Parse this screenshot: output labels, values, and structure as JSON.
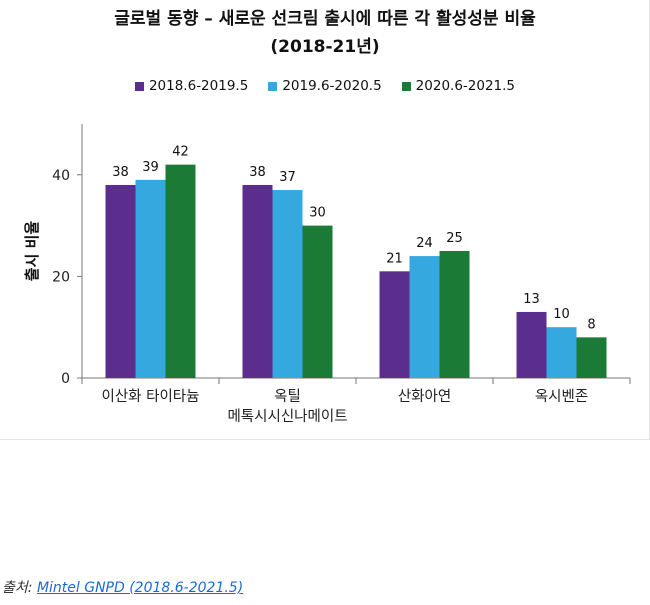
{
  "chart_data": {
    "type": "bar",
    "title": "글로벌 동향 – 새로운 선크림 출시에 따른 각 활성성분 비율",
    "subtitle": "(2018-21년)",
    "ylabel": "출시 비율",
    "xlabel": "",
    "ylim": [
      0,
      50
    ],
    "yticks": [
      0,
      20,
      40
    ],
    "categories": [
      [
        "이산화 타이타늄"
      ],
      [
        "옥틸",
        "메톡시시신나메이트"
      ],
      [
        "산화아연"
      ],
      [
        "옥시벤존"
      ]
    ],
    "series": [
      {
        "name": "2018.6-2019.5",
        "color": "#5b2d8c",
        "values": [
          38,
          38,
          21,
          13
        ]
      },
      {
        "name": "2019.6-2020.5",
        "color": "#35a8e0",
        "values": [
          39,
          37,
          24,
          10
        ]
      },
      {
        "name": "2020.6-2021.5",
        "color": "#1b7a35",
        "values": [
          42,
          30,
          25,
          8
        ]
      }
    ],
    "legend_position": "top",
    "grid": false
  },
  "source": {
    "prefix": "출처: ",
    "link_text": "Mintel GNPD (2018.6-2021.5)"
  }
}
